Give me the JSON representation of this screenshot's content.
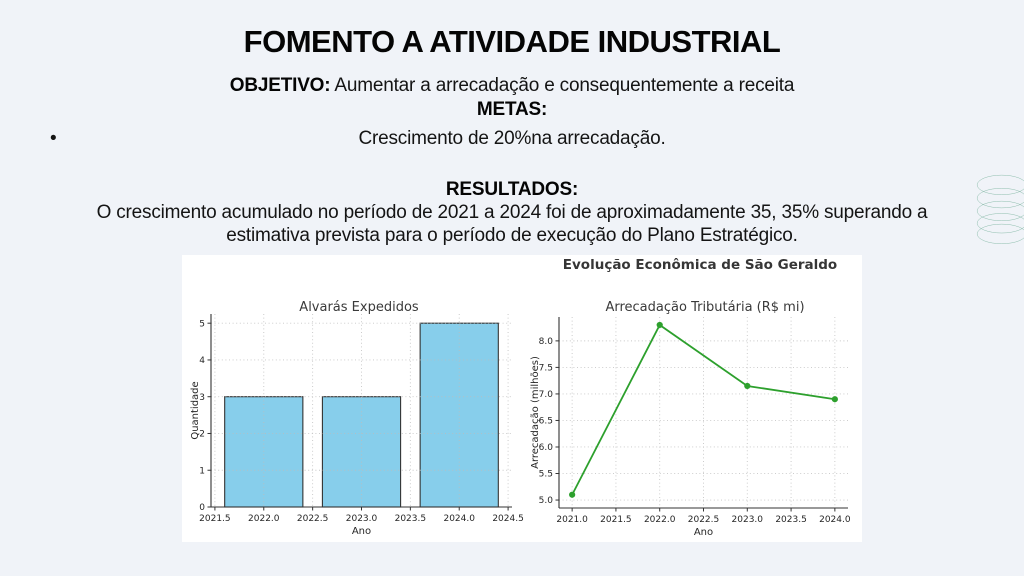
{
  "slide": {
    "title": "FOMENTO A ATIVIDADE INDUSTRIAL",
    "objetivo_label": "OBJETIVO:",
    "objetivo_text": " Aumentar a arrecadação e consequentemente a receita",
    "metas_label": "METAS:",
    "bullet_glyph": "•",
    "meta_item": "Crescimento de 20%na arrecadação.",
    "resultados_label": "RESULTADOS:",
    "resultados_line1": "O crescimento acumulado no período de 2021 a 2024 foi de aproximadamente 35, 35% superando a",
    "resultados_line2": "estimativa prevista para o período de execução do Plano Estratégico."
  },
  "figure": {
    "suptitle": "Evolução Econômica de São Geraldo",
    "background": "#ffffff"
  },
  "chart_data": [
    {
      "type": "bar",
      "title": "Alvarás Expedidos",
      "xlabel": "Ano",
      "ylabel": "Quantidade",
      "categories": [
        2022,
        2023,
        2024
      ],
      "values": [
        3,
        3,
        5
      ],
      "bar_width": 0.8,
      "bar_color": "#87ceeb",
      "bar_edge_color": "#333333",
      "xlim": [
        2021.46,
        2024.54
      ],
      "ylim": [
        0,
        5.25
      ],
      "x_ticks": [
        2021.5,
        2022.0,
        2022.5,
        2023.0,
        2023.5,
        2024.0,
        2024.5
      ],
      "x_tick_labels": [
        "2021.5",
        "2022.0",
        "2022.5",
        "2023.0",
        "2023.5",
        "2024.0",
        "2024.5"
      ],
      "y_ticks": [
        0,
        1,
        2,
        3,
        4,
        5
      ],
      "y_tick_labels": [
        "0",
        "1",
        "2",
        "3",
        "4",
        "5"
      ],
      "grid": true,
      "grid_style": "dotted"
    },
    {
      "type": "line",
      "title": "Arrecadação Tributária (R$ mi)",
      "xlabel": "Ano",
      "ylabel": "Arrecadação (milhões)",
      "x": [
        2021,
        2022,
        2023,
        2024
      ],
      "y": [
        5.1,
        8.3,
        7.15,
        6.9
      ],
      "line_color": "#2da02d",
      "marker": "circle",
      "xlim": [
        2020.85,
        2024.15
      ],
      "ylim": [
        4.85,
        8.45
      ],
      "x_ticks": [
        2021.0,
        2021.5,
        2022.0,
        2022.5,
        2023.0,
        2023.5,
        2024.0
      ],
      "x_tick_labels": [
        "2021.0",
        "2021.5",
        "2022.0",
        "2022.5",
        "2023.0",
        "2023.5",
        "2024.0"
      ],
      "y_ticks": [
        5.0,
        5.5,
        6.0,
        6.5,
        7.0,
        7.5,
        8.0
      ],
      "y_tick_labels": [
        "5.0",
        "5.5",
        "6.0",
        "6.5",
        "7.0",
        "7.5",
        "8.0"
      ],
      "grid": true,
      "grid_style": "dotted"
    }
  ],
  "decoration": {
    "spiral_color": "#8bbcab"
  },
  "colors": {
    "slide_background": "#f0f3f8",
    "spine": "#333333",
    "tick_text": "#262626",
    "chart_title_text": "#3a3a3a",
    "grid": "#bdbdbd"
  }
}
